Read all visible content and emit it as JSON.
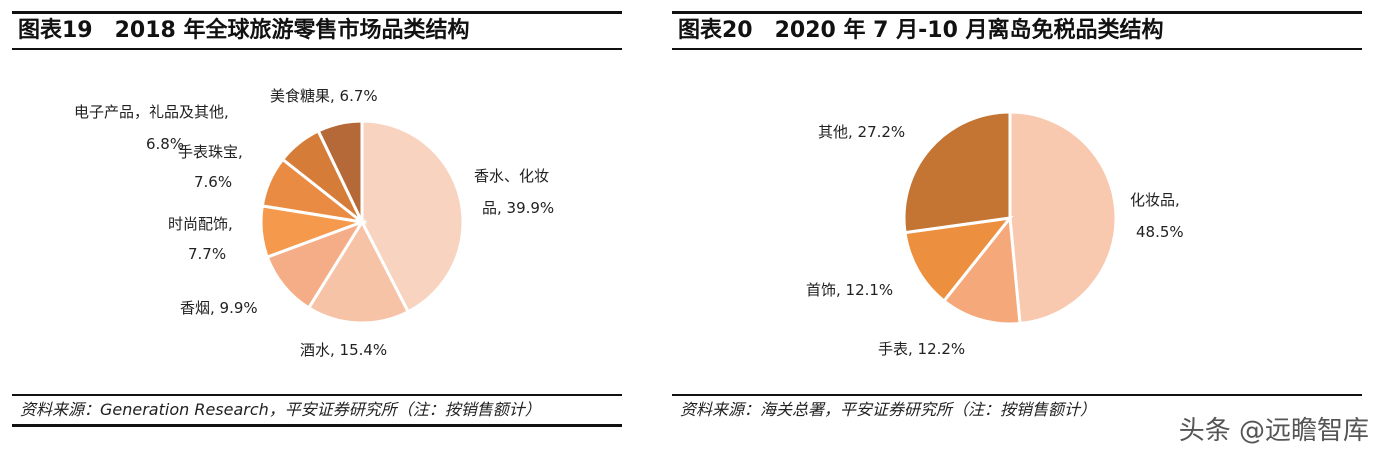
{
  "chart_data": [
    {
      "type": "pie",
      "title": "图表19　2018 年全球旅游零售市场品类结构",
      "slices": [
        {
          "label": "香水、化妆品",
          "value": 39.9,
          "color": "#f8d3c0"
        },
        {
          "label": "酒水",
          "value": 15.4,
          "color": "#f7c3a6"
        },
        {
          "label": "香烟",
          "value": 9.9,
          "color": "#f4ad86"
        },
        {
          "label": "时尚配饰",
          "value": 7.7,
          "color": "#f5994c"
        },
        {
          "label": "手表珠宝",
          "value": 7.6,
          "color": "#e98b42"
        },
        {
          "label": "电子产品，礼品及其他",
          "value": 6.8,
          "color": "#d57c38"
        },
        {
          "label": "美食糖果",
          "value": 6.7,
          "color": "#b56838"
        }
      ],
      "labels": {
        "cosmetics": "香水、化妆",
        "cosmetics2": "品, 39.9%",
        "alcohol": "酒水, 15.4%",
        "tobacco": "香烟, 9.9%",
        "fashion": "时尚配饰,",
        "fashion2": "7.7%",
        "watch": "手表珠宝,",
        "watch2": "7.6%",
        "elec": "电子产品，礼品及其他,",
        "elec2": "6.8%",
        "food": "美食糖果, 6.7%"
      },
      "source": "资料来源：Generation Research，平安证券研究所（注：按销售额计）"
    },
    {
      "type": "pie",
      "title": "图表20　2020 年 7 月-10 月离岛免税品类结构",
      "slices": [
        {
          "label": "化妆品",
          "value": 48.5,
          "color": "#f8c8af"
        },
        {
          "label": "手表",
          "value": 12.2,
          "color": "#f5a87a"
        },
        {
          "label": "首饰",
          "value": 12.1,
          "color": "#ec9040"
        },
        {
          "label": "其他",
          "value": 27.2,
          "color": "#c47534"
        }
      ],
      "labels": {
        "cosmetics": "化妆品,",
        "cosmetics2": "48.5%",
        "watch": "手表, 12.2%",
        "jewelry": "首饰, 12.1%",
        "other": "其他, 27.2%"
      },
      "source": "资料来源：海关总署，平安证券研究所（注：按销售额计）"
    }
  ],
  "watermark": "头条 @远瞻智库"
}
